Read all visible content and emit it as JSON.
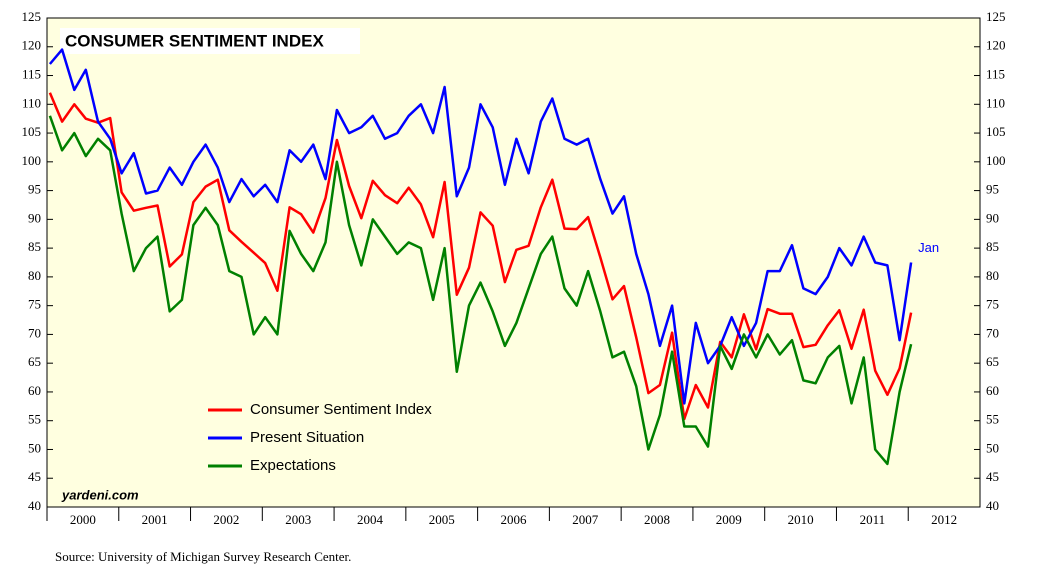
{
  "chart_data": {
    "type": "line",
    "title": "CONSUMER SENTIMENT INDEX",
    "annotation": "Jan",
    "watermark": "yardeni.com",
    "source": "Source: University of Michigan Survey Research Center.",
    "xlim": [
      2000,
      2013
    ],
    "xticks": [
      2000,
      2001,
      2002,
      2003,
      2004,
      2005,
      2006,
      2007,
      2008,
      2009,
      2010,
      2011,
      2012
    ],
    "ylim": [
      40,
      125
    ],
    "yticks": [
      40,
      45,
      50,
      55,
      60,
      65,
      70,
      75,
      80,
      85,
      90,
      95,
      100,
      105,
      110,
      115,
      120,
      125
    ],
    "y2lim": [
      40,
      125
    ],
    "y2ticks": [
      40,
      45,
      50,
      55,
      60,
      65,
      70,
      75,
      80,
      85,
      90,
      95,
      100,
      105,
      110,
      115,
      120,
      125
    ],
    "x": [
      2000.04,
      2000.21,
      2000.38,
      2000.54,
      2000.71,
      2000.88,
      2001.04,
      2001.21,
      2001.38,
      2001.54,
      2001.71,
      2001.88,
      2002.04,
      2002.21,
      2002.38,
      2002.54,
      2002.71,
      2002.88,
      2003.04,
      2003.21,
      2003.38,
      2003.54,
      2003.71,
      2003.88,
      2004.04,
      2004.21,
      2004.38,
      2004.54,
      2004.71,
      2004.88,
      2005.04,
      2005.21,
      2005.38,
      2005.54,
      2005.71,
      2005.88,
      2006.04,
      2006.21,
      2006.38,
      2006.54,
      2006.71,
      2006.88,
      2007.04,
      2007.21,
      2007.38,
      2007.54,
      2007.71,
      2007.88,
      2008.04,
      2008.21,
      2008.38,
      2008.54,
      2008.71,
      2008.88,
      2009.04,
      2009.21,
      2009.38,
      2009.54,
      2009.71,
      2009.88,
      2010.04,
      2010.21,
      2010.38,
      2010.54,
      2010.71,
      2010.88,
      2011.04,
      2011.21,
      2011.38,
      2011.54,
      2011.71,
      2011.88,
      2012.04
    ],
    "series": [
      {
        "name": "Consumer Sentiment Index",
        "color": "#ff0000",
        "values": [
          112,
          107,
          110,
          107.5,
          106.8,
          107.6,
          94.7,
          91.5,
          92,
          92.4,
          81.8,
          83.9,
          93,
          95.7,
          96.9,
          88.1,
          86.1,
          84.2,
          82.4,
          77.6,
          92.1,
          90.9,
          87.7,
          93.7,
          103.8,
          95.8,
          90.2,
          96.7,
          94.2,
          92.8,
          95.5,
          92.6,
          86.9,
          96.5,
          76.9,
          81.6,
          91.2,
          88.9,
          79.1,
          84.7,
          85.4,
          92.1,
          96.9,
          88.4,
          88.3,
          90.4,
          83.4,
          76.1,
          78.4,
          69.5,
          59.8,
          61.2,
          70.3,
          55.3,
          61.2,
          57.3,
          68.7,
          66,
          73.5,
          67.4,
          74.4,
          73.6,
          73.6,
          67.8,
          68.2,
          71.6,
          74.2,
          67.5,
          74.3,
          63.7,
          59.5,
          64.1,
          73.8
        ]
      },
      {
        "name": "Present Situation",
        "color": "#0000ff",
        "values": [
          117,
          119.5,
          112.5,
          116,
          107,
          104,
          98,
          101.5,
          94.5,
          95,
          99,
          96,
          100,
          103,
          99,
          93,
          97,
          94,
          96,
          93,
          102,
          100,
          103,
          97,
          109,
          105,
          106,
          108,
          104,
          105,
          108,
          110,
          105,
          113,
          94,
          99,
          110,
          106,
          96,
          104,
          98,
          107,
          111,
          104,
          103,
          104,
          97,
          91,
          94,
          84,
          77,
          68,
          75,
          58,
          72,
          65,
          68,
          73,
          68,
          72,
          81,
          81,
          85.5,
          78,
          77,
          80,
          85,
          82,
          87,
          82.5,
          82,
          69,
          82.5
        ]
      },
      {
        "name": "Expectations",
        "color": "#008000",
        "values": [
          108,
          102,
          105,
          101,
          104,
          102,
          91,
          81,
          85,
          87,
          74,
          76,
          89,
          92,
          89,
          81,
          80,
          70,
          73,
          70,
          88,
          84,
          81,
          86,
          100,
          89,
          82,
          90,
          87,
          84,
          86,
          85,
          76,
          85,
          63.5,
          75,
          79,
          74,
          68,
          72,
          78,
          84,
          87,
          78,
          75,
          81,
          74,
          66,
          67,
          61,
          50,
          56,
          67,
          54,
          54,
          50.5,
          68,
          64,
          70,
          66,
          70,
          66.5,
          69,
          62,
          61.5,
          66,
          68,
          58,
          66,
          50,
          47.5,
          60,
          68.3
        ]
      }
    ]
  }
}
